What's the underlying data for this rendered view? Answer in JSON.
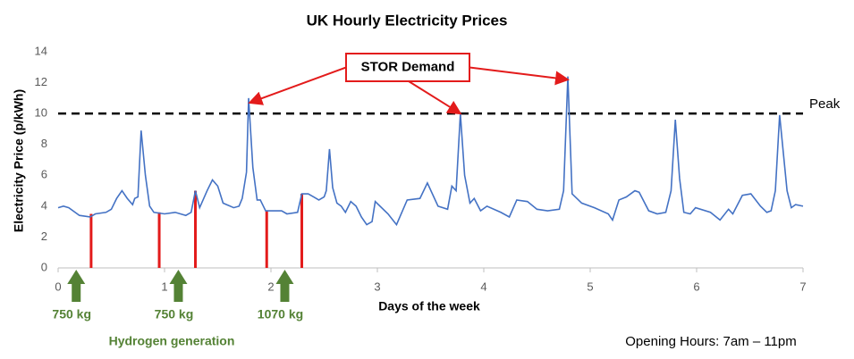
{
  "chart_data": {
    "type": "line",
    "title": "UK Hourly Electricity Prices",
    "x_label": "Days of the week",
    "y_label": "Electricity Price (p/kWh)",
    "xlim": [
      0,
      7
    ],
    "ylim": [
      0,
      14
    ],
    "xticks": [
      0,
      1,
      2,
      3,
      4,
      5,
      6,
      7
    ],
    "yticks": [
      0,
      2,
      4,
      6,
      8,
      10,
      12,
      14
    ],
    "series": [
      {
        "color": "#4472c4",
        "x": [
          0,
          0.05,
          0.1,
          0.2,
          0.3,
          0.35,
          0.45,
          0.5,
          0.55,
          0.6,
          0.65,
          0.7,
          0.72,
          0.75,
          0.78,
          0.82,
          0.86,
          0.9,
          1.0,
          1.1,
          1.2,
          1.25,
          1.29,
          1.33,
          1.4,
          1.45,
          1.5,
          1.55,
          1.65,
          1.7,
          1.73,
          1.77,
          1.79,
          1.83,
          1.87,
          1.9,
          1.95,
          2.0,
          2.1,
          2.15,
          2.25,
          2.29,
          2.35,
          2.4,
          2.45,
          2.5,
          2.52,
          2.55,
          2.58,
          2.62,
          2.66,
          2.7,
          2.75,
          2.8,
          2.85,
          2.9,
          2.95,
          2.98,
          3.1,
          3.18,
          3.28,
          3.4,
          3.47,
          3.57,
          3.66,
          3.7,
          3.74,
          3.78,
          3.82,
          3.87,
          3.91,
          3.97,
          4.03,
          4.16,
          4.24,
          4.31,
          4.41,
          4.5,
          4.6,
          4.71,
          4.75,
          4.79,
          4.83,
          4.92,
          5.04,
          5.17,
          5.21,
          5.27,
          5.34,
          5.42,
          5.46,
          5.55,
          5.63,
          5.71,
          5.76,
          5.8,
          5.84,
          5.88,
          5.94,
          5.99,
          6.13,
          6.22,
          6.3,
          6.34,
          6.43,
          6.51,
          6.6,
          6.66,
          6.7,
          6.74,
          6.78,
          6.85,
          6.89,
          6.93,
          7.0
        ],
        "values": [
          3.9,
          4.0,
          3.9,
          3.4,
          3.3,
          3.5,
          3.6,
          3.8,
          4.5,
          5.0,
          4.5,
          4.1,
          4.5,
          4.6,
          8.9,
          6.0,
          4.0,
          3.6,
          3.5,
          3.6,
          3.4,
          3.6,
          5.0,
          3.9,
          5.0,
          5.7,
          5.3,
          4.2,
          3.9,
          4.0,
          4.5,
          6.2,
          11.0,
          6.5,
          4.4,
          4.4,
          3.7,
          3.7,
          3.7,
          3.5,
          3.6,
          4.8,
          4.8,
          4.6,
          4.4,
          4.6,
          5.0,
          7.7,
          5.2,
          4.2,
          4.0,
          3.6,
          4.3,
          4.0,
          3.3,
          2.8,
          3.0,
          4.3,
          3.5,
          2.8,
          4.4,
          4.5,
          5.5,
          4.0,
          3.8,
          5.3,
          5.0,
          10.0,
          6.0,
          4.2,
          4.5,
          3.7,
          4.0,
          3.6,
          3.3,
          4.4,
          4.3,
          3.8,
          3.7,
          3.8,
          5.0,
          12.4,
          4.8,
          4.2,
          3.9,
          3.5,
          3.1,
          4.4,
          4.6,
          5.0,
          4.9,
          3.7,
          3.5,
          3.6,
          5.0,
          9.6,
          5.8,
          3.6,
          3.5,
          3.9,
          3.6,
          3.1,
          3.8,
          3.5,
          4.7,
          4.8,
          4.0,
          3.6,
          3.7,
          5.0,
          9.9,
          5.0,
          3.9,
          4.1,
          4.0
        ]
      }
    ],
    "peak": {
      "value": 10,
      "label": "Peak"
    },
    "callout": {
      "text": "STOR Demand",
      "targets": [
        {
          "x": 1.8,
          "y": 10.7
        },
        {
          "x": 3.78,
          "y": 10.0
        },
        {
          "x": 4.79,
          "y": 12.2
        }
      ]
    },
    "generation_lines": [
      {
        "x": 0.31,
        "value": 3.5
      },
      {
        "x": 0.95,
        "value": 3.6
      },
      {
        "x": 1.29,
        "value": 5.0
      },
      {
        "x": 1.96,
        "value": 3.7
      },
      {
        "x": 2.29,
        "value": 4.8
      }
    ],
    "hydrogen": {
      "caption": "Hydrogen generation",
      "arrows": [
        {
          "x": 0.17,
          "label": "750 kg"
        },
        {
          "x": 1.13,
          "label": "750 kg"
        },
        {
          "x": 2.13,
          "label": "1070 kg"
        }
      ]
    },
    "footnote": "Opening Hours: 7am – 11pm"
  }
}
